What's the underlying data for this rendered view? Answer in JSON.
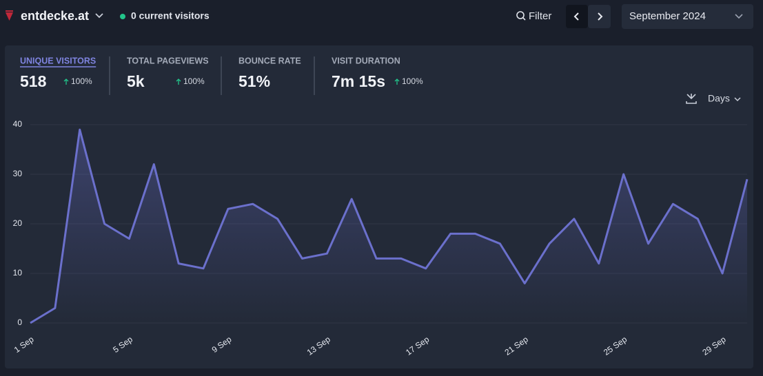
{
  "header": {
    "site": "entdecke.at",
    "visitors": "0 current visitors",
    "filter": "Filter",
    "period": "September 2024"
  },
  "metrics": [
    {
      "label": "UNIQUE VISITORS",
      "value": "518",
      "change": "100%"
    },
    {
      "label": "TOTAL PAGEVIEWS",
      "value": "5k",
      "change": "100%"
    },
    {
      "label": "BOUNCE RATE",
      "value": "51%"
    },
    {
      "label": "VISIT DURATION",
      "value": "7m 15s",
      "change": "100%"
    }
  ],
  "interval": "Days",
  "chart_data": {
    "type": "line",
    "categories": [
      "1 Sep",
      null,
      null,
      null,
      "5 Sep",
      null,
      null,
      null,
      "9 Sep",
      null,
      null,
      null,
      "13 Sep",
      null,
      null,
      null,
      "17 Sep",
      null,
      null,
      null,
      "21 Sep",
      null,
      null,
      null,
      "25 Sep",
      null,
      null,
      null,
      "29 Sep",
      null
    ],
    "values": [
      0,
      3,
      39,
      20,
      17,
      32,
      12,
      11,
      23,
      24,
      21,
      13,
      14,
      25,
      13,
      13,
      11,
      18,
      18,
      16,
      8,
      16,
      21,
      12,
      30,
      16,
      24,
      21,
      10,
      29
    ],
    "color": "#6b70cc",
    "ylim": [
      0,
      40
    ],
    "yticks": [
      0,
      10,
      20,
      30,
      40
    ],
    "grid": true
  }
}
